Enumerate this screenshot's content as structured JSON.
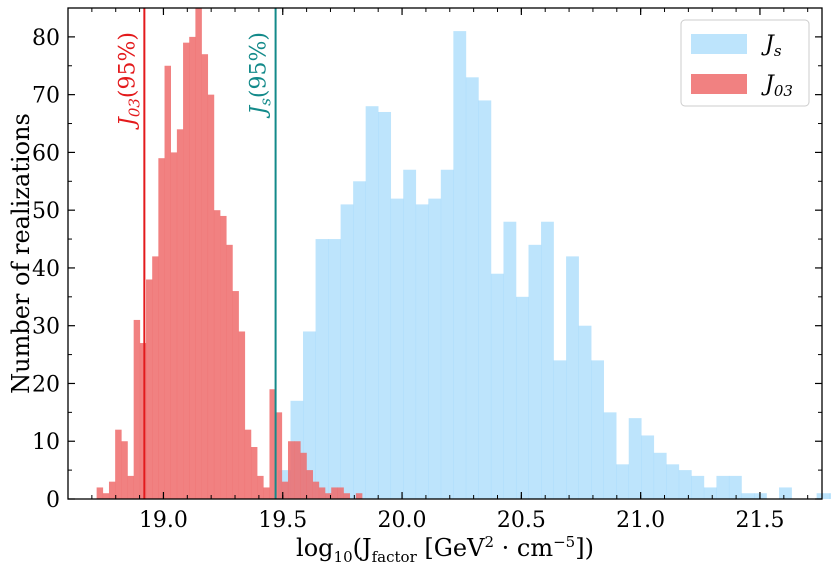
{
  "chart_data": {
    "type": "histogram",
    "xlabel": "log10(Jfactor [GeV2 · cm−5])",
    "xlabel_parts": {
      "pre": "log",
      "pre_sub": "10",
      "main": "(J",
      "main_sub": "factor",
      "unit1": " [GeV",
      "unit1_sup": "2",
      "unit2": " · cm",
      "unit2_sup": "−5",
      "close": "])"
    },
    "ylabel": "Number of realizations",
    "xlim": [
      18.6,
      21.76
    ],
    "ylim": [
      0,
      85
    ],
    "xticks": [
      19.0,
      19.5,
      20.0,
      20.5,
      21.0,
      21.5
    ],
    "xtick_labels": [
      "19.0",
      "19.5",
      "20.0",
      "20.5",
      "21.0",
      "21.5"
    ],
    "yticks": [
      0,
      10,
      20,
      30,
      40,
      50,
      60,
      70,
      80
    ],
    "ytick_labels": [
      "0",
      "10",
      "20",
      "30",
      "40",
      "50",
      "60",
      "70",
      "80"
    ],
    "legend_position": "top-right",
    "series": [
      {
        "name": "Js",
        "label_main": "J",
        "label_sub": "s",
        "color": "#87CEFA",
        "bin_start": 19.48,
        "bin_width": 0.0525,
        "counts": [
          5,
          17,
          29,
          45,
          45,
          51,
          55,
          68,
          67,
          52,
          57,
          51,
          52,
          57,
          81,
          73,
          69,
          39,
          48,
          35,
          44,
          48,
          24,
          42,
          30,
          24,
          15,
          6,
          14,
          11,
          8,
          6,
          5,
          4,
          2,
          4,
          4,
          1,
          1,
          0,
          2,
          0,
          0,
          1,
          1,
          3
        ]
      },
      {
        "name": "J03",
        "label_main": "J",
        "label_sub": "03",
        "color": "#EE6B6B",
        "bin_start": 18.72,
        "bin_width": 0.02587,
        "counts": [
          2,
          1,
          3,
          12,
          10,
          4,
          31,
          27,
          38,
          42,
          59,
          75,
          60,
          64,
          79,
          80,
          85,
          77,
          70,
          50,
          49,
          44,
          36,
          29,
          12,
          9,
          4,
          2,
          19,
          15,
          3,
          10,
          10,
          8,
          5,
          3,
          2,
          1,
          2,
          2,
          1,
          0,
          1
        ]
      }
    ],
    "vlines": [
      {
        "x": 18.92,
        "label_main": "J",
        "label_sub": "03",
        "label_rest": "(95%)",
        "color": "#E31A1C"
      },
      {
        "x": 19.47,
        "label_main": "J",
        "label_sub": "s",
        "label_rest": "(95%)",
        "color": "#138A8A"
      }
    ]
  }
}
